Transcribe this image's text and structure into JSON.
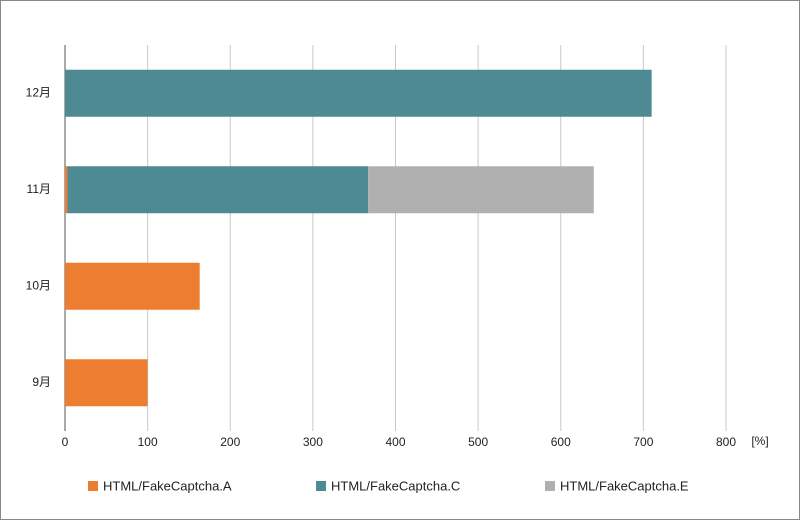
{
  "chart_data": {
    "type": "stacked-barh",
    "categories": [
      "9月",
      "10月",
      "11月",
      "12月"
    ],
    "series": [
      {
        "name": "HTML/FakeCaptcha.A",
        "color": "#ed7d31",
        "values": [
          100,
          163,
          3,
          0
        ]
      },
      {
        "name": "HTML/FakeCaptcha.C",
        "color": "#4e8a94",
        "values": [
          0,
          0,
          364,
          710
        ]
      },
      {
        "name": "HTML/FakeCaptcha.E",
        "color": "#b0b0b0",
        "values": [
          0,
          0,
          273,
          0
        ]
      }
    ],
    "xlim": [
      0,
      800
    ],
    "xticks": [
      0,
      100,
      200,
      300,
      400,
      500,
      600,
      700,
      800
    ],
    "x_unit": "[%]",
    "grid": true
  }
}
